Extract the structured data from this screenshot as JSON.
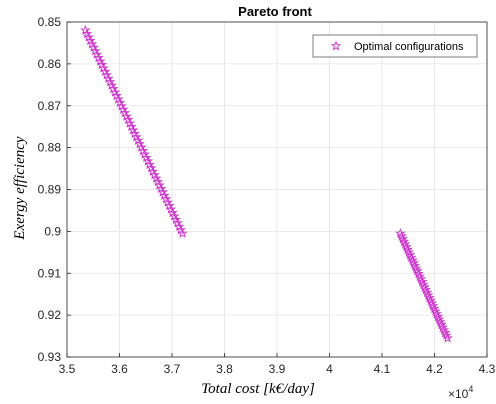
{
  "chart_data": {
    "type": "scatter",
    "title": "Pareto front",
    "xlabel": "Total cost [k€/day]",
    "ylabel": "Exergy efficiency",
    "x_multiplier_label": "×10",
    "x_multiplier_exponent": "4",
    "xlim": [
      3.5,
      4.3
    ],
    "ylim": [
      0.85,
      0.93
    ],
    "y_reversed": true,
    "x_ticks": [
      3.5,
      3.6,
      3.7,
      3.8,
      3.9,
      4.0,
      4.1,
      4.2,
      4.3
    ],
    "x_tick_labels": [
      "3.5",
      "3.6",
      "3.7",
      "3.8",
      "3.9",
      "4",
      "4.1",
      "4.2",
      "4.3"
    ],
    "y_ticks": [
      0.85,
      0.86,
      0.87,
      0.88,
      0.89,
      0.9,
      0.91,
      0.92,
      0.93
    ],
    "y_tick_labels": [
      "0.85",
      "0.86",
      "0.87",
      "0.88",
      "0.89",
      "0.9",
      "0.91",
      "0.92",
      "0.93"
    ],
    "grid": true,
    "legend_position": "top-right",
    "marker": "pentagram",
    "series": [
      {
        "name": "Optimal configurations",
        "color": "#cc33cc",
        "segments": [
          {
            "x_start": 3.535,
            "y_start": 0.852,
            "x_end": 3.72,
            "y_end": 0.9005,
            "count": 60
          },
          {
            "x_start": 4.135,
            "y_start": 0.9005,
            "x_end": 4.225,
            "y_end": 0.9255,
            "count": 40
          }
        ]
      }
    ]
  }
}
